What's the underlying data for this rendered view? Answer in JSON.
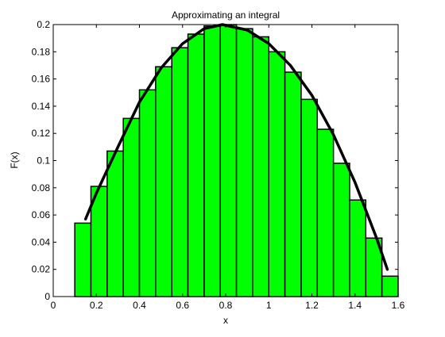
{
  "chart_data": {
    "type": "bar",
    "title": "Approximating an integral",
    "xlabel": "x",
    "ylabel": "F(x)",
    "xlim": [
      0,
      1.6
    ],
    "ylim": [
      0,
      0.2
    ],
    "xticks": [
      "0",
      "0.2",
      "0.4",
      "0.6",
      "0.8",
      "1",
      "1.2",
      "1.4",
      "1.6"
    ],
    "yticks": [
      "0",
      "0.02",
      "0.04",
      "0.06",
      "0.08",
      "0.1",
      "0.12",
      "0.14",
      "0.16",
      "0.18",
      "0.2"
    ],
    "grid": false,
    "bars": {
      "x": [
        0.1375,
        0.2125,
        0.2875,
        0.3625,
        0.4375,
        0.5125,
        0.5875,
        0.6625,
        0.7375,
        0.8125,
        0.8875,
        0.9625,
        1.0375,
        1.1125,
        1.1875,
        1.2625,
        1.3375,
        1.4125,
        1.4875,
        1.5625
      ],
      "width": 0.075,
      "values": [
        0.054,
        0.081,
        0.107,
        0.131,
        0.152,
        0.169,
        0.183,
        0.193,
        0.199,
        0.2,
        0.197,
        0.191,
        0.18,
        0.165,
        0.145,
        0.123,
        0.098,
        0.071,
        0.043,
        0.015
      ],
      "color": "#00ff00",
      "edgecolor": "#000000"
    },
    "curve": {
      "x": [
        0.15,
        0.2,
        0.3,
        0.4,
        0.5,
        0.6,
        0.7,
        0.785,
        0.9,
        1.0,
        1.1,
        1.2,
        1.3,
        1.4,
        1.5,
        1.55
      ],
      "y": [
        0.057,
        0.076,
        0.11,
        0.143,
        0.168,
        0.186,
        0.197,
        0.2,
        0.196,
        0.186,
        0.17,
        0.148,
        0.119,
        0.084,
        0.043,
        0.02
      ],
      "color": "#000000"
    }
  }
}
